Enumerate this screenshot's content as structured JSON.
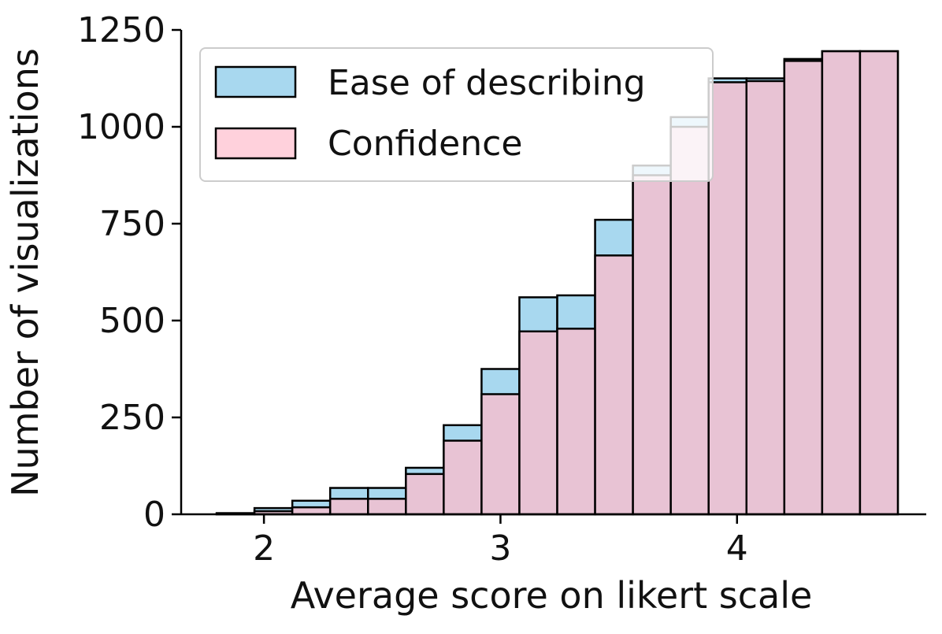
{
  "chart_data": {
    "type": "bar",
    "title": "",
    "xlabel": "Average score on likert scale",
    "ylabel": "Number of visualizations",
    "xlim": [
      1.65,
      4.8
    ],
    "ylim": [
      0,
      1250
    ],
    "xticks": [
      2,
      3,
      4
    ],
    "yticks": [
      0,
      250,
      500,
      750,
      1000,
      1250
    ],
    "grid": false,
    "legend_position": "top-left",
    "bin_edges": [
      1.8,
      1.96,
      2.12,
      2.28,
      2.44,
      2.6,
      2.76,
      2.92,
      3.08,
      3.24,
      3.4,
      3.56,
      3.72,
      3.88,
      4.04,
      4.2,
      4.36,
      4.52,
      4.68
    ],
    "series": [
      {
        "name": "Ease of describing",
        "color": "#a8d8ef",
        "values": [
          3,
          16,
          35,
          68,
          68,
          120,
          230,
          375,
          560,
          565,
          760,
          900,
          1025,
          1125,
          1125,
          1175,
          1195,
          1195
        ]
      },
      {
        "name": "Confidence",
        "color": "#ffd1dc",
        "values": [
          1,
          8,
          18,
          40,
          40,
          104,
          190,
          310,
          472,
          479,
          668,
          875,
          1000,
          1115,
          1118,
          1170,
          1195,
          1195
        ]
      }
    ],
    "overlap_color": "#e8c3d4"
  }
}
